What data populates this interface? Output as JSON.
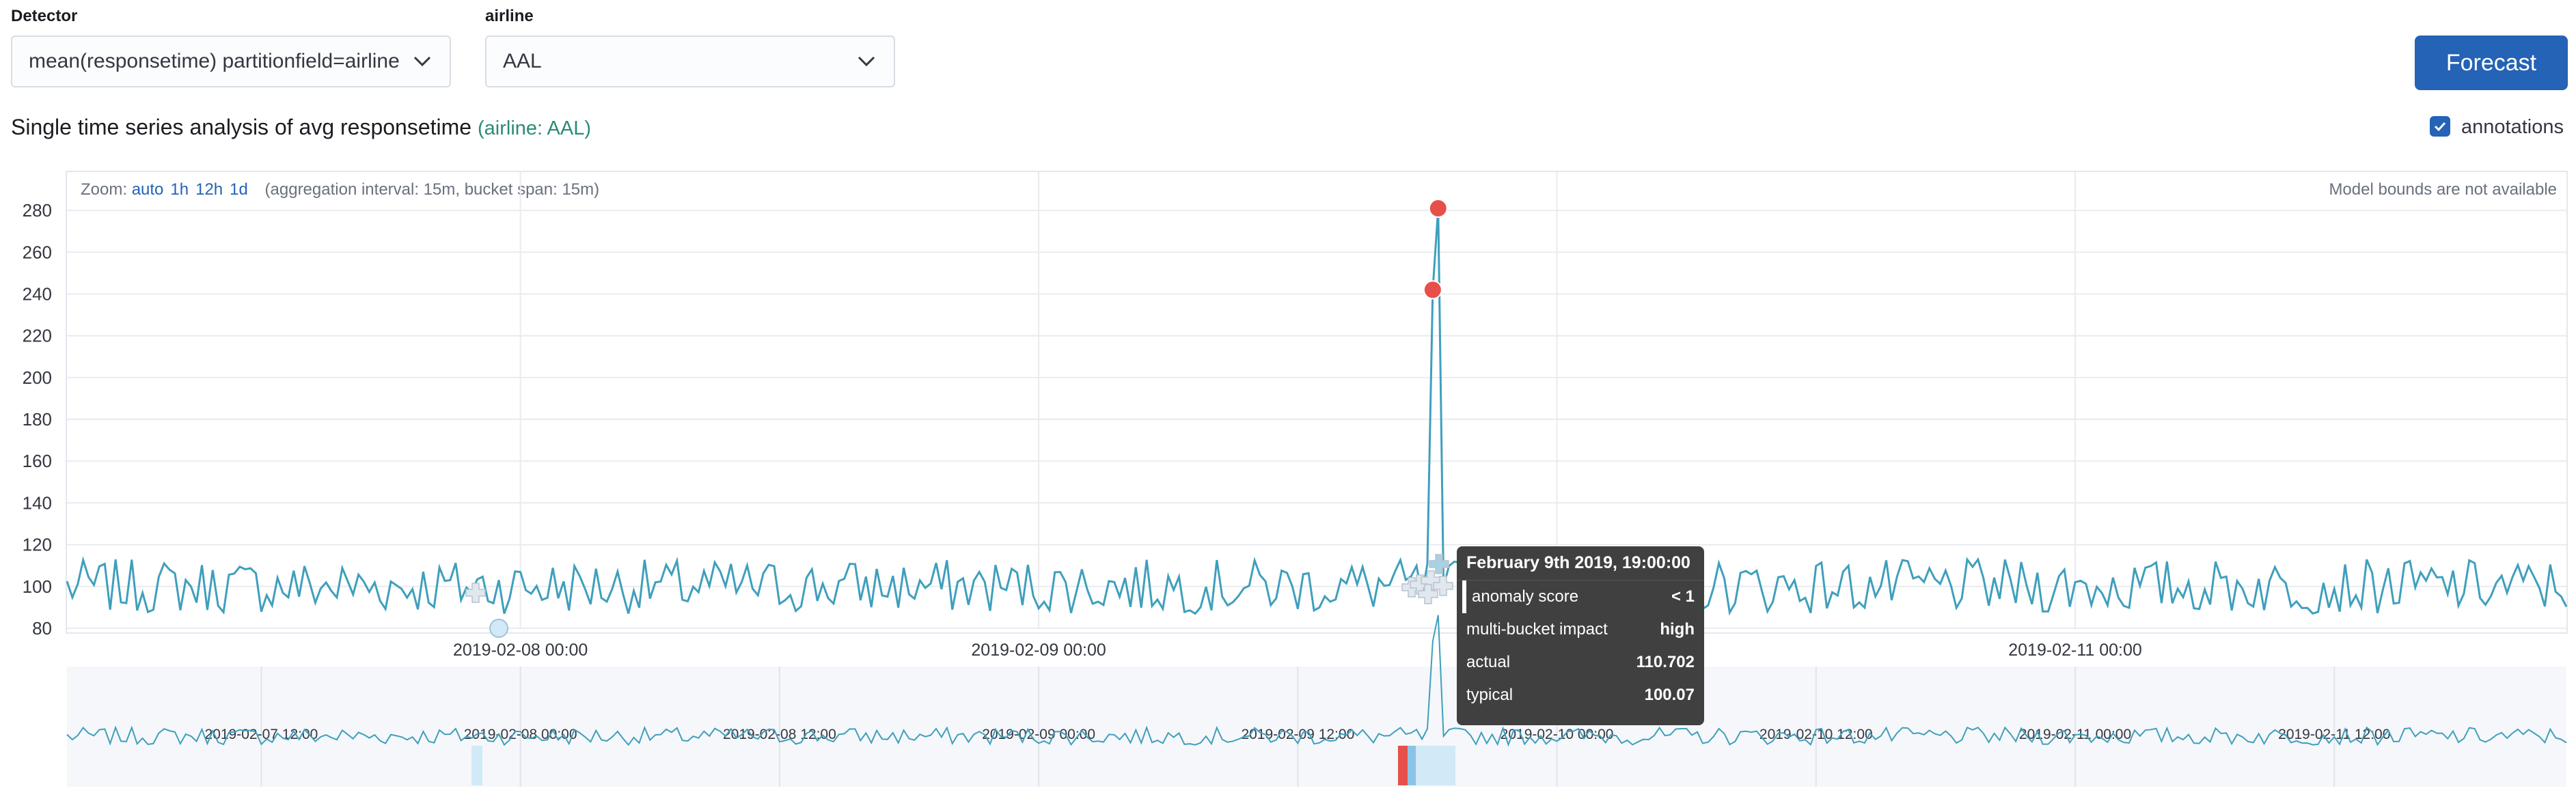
{
  "controls": {
    "detector_label": "Detector",
    "detector_value": "mean(responsetime) partitionfield=airline",
    "airline_label": "airline",
    "airline_value": "AAL",
    "forecast_label": "Forecast"
  },
  "header": {
    "title": "Single time series analysis of avg responsetime",
    "subtitle": "(airline: AAL)",
    "annotations_label": "annotations",
    "annotations_checked": true
  },
  "chart_info": {
    "zoom_label": "Zoom:",
    "zoom_options": [
      "auto",
      "1h",
      "12h",
      "1d"
    ],
    "aggregation_text": "(aggregation interval: 15m, bucket span: 15m)",
    "model_bounds_text": "Model bounds are not available"
  },
  "colors": {
    "series_line": "#3f9fbc",
    "anomaly_critical": "#e7504a",
    "anomaly_low": "#d2e9f7",
    "accent": "#2463b5"
  },
  "chart_data": {
    "type": "line",
    "title": "Single time series analysis of avg responsetime",
    "y_ticks": [
      280,
      260,
      240,
      220,
      200,
      180,
      160,
      140,
      120,
      100,
      80
    ],
    "ylim": [
      80,
      282
    ],
    "x_ticks": [
      "2019-02-08 00:00",
      "2019-02-09 00:00",
      "2019-02-10 00:00",
      "2019-02-11 00:00"
    ],
    "x_range": [
      "2019-02-07 03:00",
      "2019-02-11 22:45"
    ],
    "series": [
      {
        "name": "avg responsetime",
        "baseline": 100,
        "x_start": "2019-02-07 03:00",
        "interval_minutes": 15,
        "spike": [
          {
            "time": "2019-02-09 18:15",
            "value": 242
          },
          {
            "time": "2019-02-09 18:30",
            "value": 281
          }
        ]
      }
    ],
    "anomalies": [
      {
        "time": "2019-02-09 18:15",
        "value": 242,
        "severity": "critical"
      },
      {
        "time": "2019-02-09 18:30",
        "value": 281,
        "severity": "critical"
      },
      {
        "time": "2019-02-07 23:00",
        "value": 80,
        "severity": "low"
      }
    ],
    "context_x_ticks": [
      "2019-02-07 12:00",
      "2019-02-08 00:00",
      "2019-02-08 12:00",
      "2019-02-09 00:00",
      "2019-02-09 12:00",
      "2019-02-10 00:00",
      "2019-02-10 12:00",
      "2019-02-11 00:00",
      "2019-02-11 12:00"
    ]
  },
  "tooltip": {
    "title": "February 9th 2019, 19:00:00",
    "rows": [
      {
        "label": "anomaly score",
        "value": "< 1"
      },
      {
        "label": "multi-bucket impact",
        "value": "high"
      },
      {
        "label": "actual",
        "value": "110.702"
      },
      {
        "label": "typical",
        "value": "100.07"
      }
    ]
  }
}
